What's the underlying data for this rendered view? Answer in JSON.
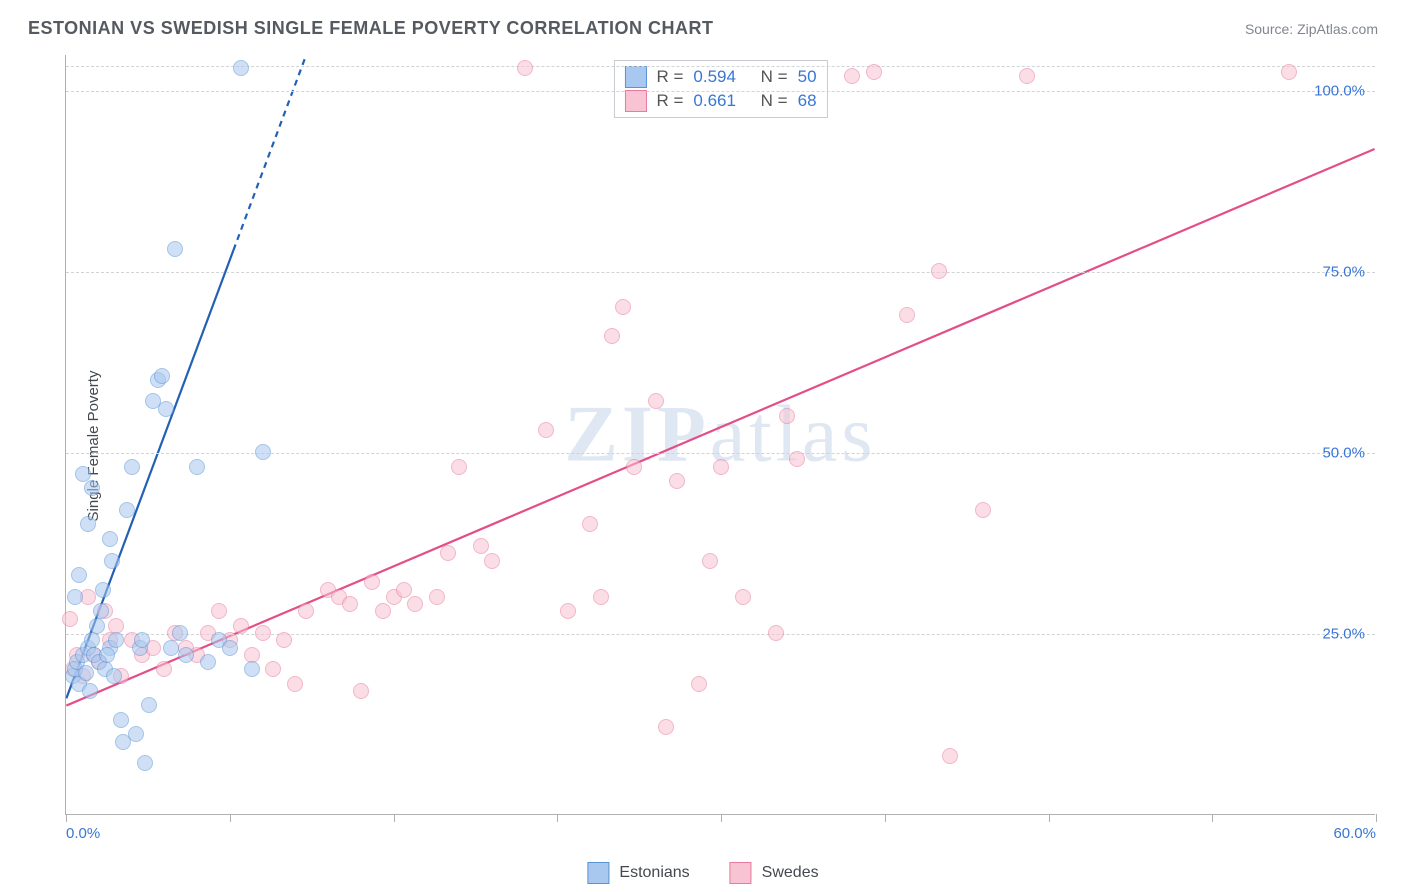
{
  "header": {
    "title": "ESTONIAN VS SWEDISH SINGLE FEMALE POVERTY CORRELATION CHART",
    "source": "Source: ZipAtlas.com"
  },
  "chart": {
    "type": "scatter",
    "ylabel": "Single Female Poverty",
    "watermark": "ZIPatlas",
    "background_color": "#ffffff",
    "grid_color": "#d0d4d8",
    "axis_color": "#b0b0b0",
    "tick_label_color": "#3776d6",
    "xlim": [
      0,
      60
    ],
    "ylim": [
      0,
      105
    ],
    "xticks": [
      0,
      7.5,
      15,
      22.5,
      30,
      37.5,
      45,
      52.5,
      60
    ],
    "xtick_labels": {
      "0": "0.0%",
      "60": "60.0%"
    },
    "yticks": [
      25,
      50,
      75,
      100
    ],
    "ytick_labels": {
      "25": "25.0%",
      "50": "50.0%",
      "75": "75.0%",
      "100": "100.0%"
    },
    "marker_radius": 8,
    "marker_opacity": 0.55,
    "line_width": 2.2,
    "series": {
      "estonians": {
        "label": "Estonians",
        "fill_color": "#a8c8ef",
        "stroke_color": "#5a94d6",
        "line_color": "#2360b5",
        "R": "0.594",
        "N": "50",
        "trend": {
          "x1": 0,
          "y1": 16,
          "x2": 11,
          "y2": 105,
          "dash_from_y": 78
        },
        "points": [
          [
            0.3,
            19
          ],
          [
            0.4,
            20
          ],
          [
            0.5,
            21
          ],
          [
            0.6,
            18
          ],
          [
            0.8,
            22
          ],
          [
            0.9,
            19.5
          ],
          [
            1.0,
            23
          ],
          [
            1.1,
            17
          ],
          [
            1.2,
            24
          ],
          [
            1.3,
            22
          ],
          [
            1.4,
            26
          ],
          [
            1.5,
            21
          ],
          [
            1.6,
            28
          ],
          [
            1.7,
            31
          ],
          [
            1.8,
            20
          ],
          [
            2.0,
            23
          ],
          [
            2.1,
            35
          ],
          [
            2.2,
            19
          ],
          [
            2.3,
            24
          ],
          [
            2.5,
            13
          ],
          [
            2.6,
            10
          ],
          [
            2.8,
            42
          ],
          [
            3.0,
            48
          ],
          [
            3.2,
            11
          ],
          [
            3.4,
            23
          ],
          [
            3.6,
            7
          ],
          [
            3.8,
            15
          ],
          [
            4.0,
            57
          ],
          [
            4.2,
            60
          ],
          [
            4.4,
            60.5
          ],
          [
            4.6,
            56
          ],
          [
            5.0,
            78
          ],
          [
            5.2,
            25
          ],
          [
            5.5,
            22
          ],
          [
            6.0,
            48
          ],
          [
            6.5,
            21
          ],
          [
            7.0,
            24
          ],
          [
            7.5,
            23
          ],
          [
            8.0,
            103
          ],
          [
            8.5,
            20
          ],
          [
            9.0,
            50
          ],
          [
            0.8,
            47
          ],
          [
            1.0,
            40
          ],
          [
            1.2,
            45
          ],
          [
            0.4,
            30
          ],
          [
            0.6,
            33
          ],
          [
            2.0,
            38
          ],
          [
            3.5,
            24
          ],
          [
            4.8,
            23
          ],
          [
            1.9,
            22
          ]
        ]
      },
      "swedes": {
        "label": "Swedes",
        "fill_color": "#f8c3d2",
        "stroke_color": "#e77ba1",
        "line_color": "#e34e87",
        "R": "0.661",
        "N": "68",
        "trend": {
          "x1": 0,
          "y1": 15,
          "x2": 60,
          "y2": 92
        },
        "points": [
          [
            0.2,
            27
          ],
          [
            0.5,
            22
          ],
          [
            1.0,
            30
          ],
          [
            1.5,
            21
          ],
          [
            2.0,
            24
          ],
          [
            2.5,
            19
          ],
          [
            3.0,
            24
          ],
          [
            3.5,
            22
          ],
          [
            4.0,
            23
          ],
          [
            4.5,
            20
          ],
          [
            5.0,
            25
          ],
          [
            5.5,
            23
          ],
          [
            6.0,
            22
          ],
          [
            6.5,
            25
          ],
          [
            7.0,
            28
          ],
          [
            7.5,
            24
          ],
          [
            8.0,
            26
          ],
          [
            8.5,
            22
          ],
          [
            9.0,
            25
          ],
          [
            9.5,
            20
          ],
          [
            10.0,
            24
          ],
          [
            10.5,
            18
          ],
          [
            11.0,
            28
          ],
          [
            12.0,
            31
          ],
          [
            12.5,
            30
          ],
          [
            13.0,
            29
          ],
          [
            13.5,
            17
          ],
          [
            14.0,
            32
          ],
          [
            14.5,
            28
          ],
          [
            15.0,
            30
          ],
          [
            15.5,
            31
          ],
          [
            16.0,
            29
          ],
          [
            17.0,
            30
          ],
          [
            17.5,
            36
          ],
          [
            18.0,
            48
          ],
          [
            19.0,
            37
          ],
          [
            19.5,
            35
          ],
          [
            21.0,
            103
          ],
          [
            22.0,
            53
          ],
          [
            23.0,
            28
          ],
          [
            24.0,
            40
          ],
          [
            24.5,
            30
          ],
          [
            25.0,
            66
          ],
          [
            25.5,
            70
          ],
          [
            26.0,
            48
          ],
          [
            27.0,
            57
          ],
          [
            27.5,
            12
          ],
          [
            28.0,
            46
          ],
          [
            29.0,
            18
          ],
          [
            29.5,
            35
          ],
          [
            30.0,
            48
          ],
          [
            31.0,
            30
          ],
          [
            32.5,
            25
          ],
          [
            33.0,
            55
          ],
          [
            33.5,
            49
          ],
          [
            36.0,
            102
          ],
          [
            37.0,
            102.5
          ],
          [
            38.5,
            69
          ],
          [
            40.0,
            75
          ],
          [
            40.5,
            8
          ],
          [
            42.0,
            42
          ],
          [
            44.0,
            102
          ],
          [
            56.0,
            102.5
          ],
          [
            0.3,
            20
          ],
          [
            0.8,
            19
          ],
          [
            1.3,
            22
          ],
          [
            1.8,
            28
          ],
          [
            2.3,
            26
          ]
        ]
      }
    },
    "legend_stats": {
      "R_label": "R =",
      "N_label": "N ="
    }
  }
}
